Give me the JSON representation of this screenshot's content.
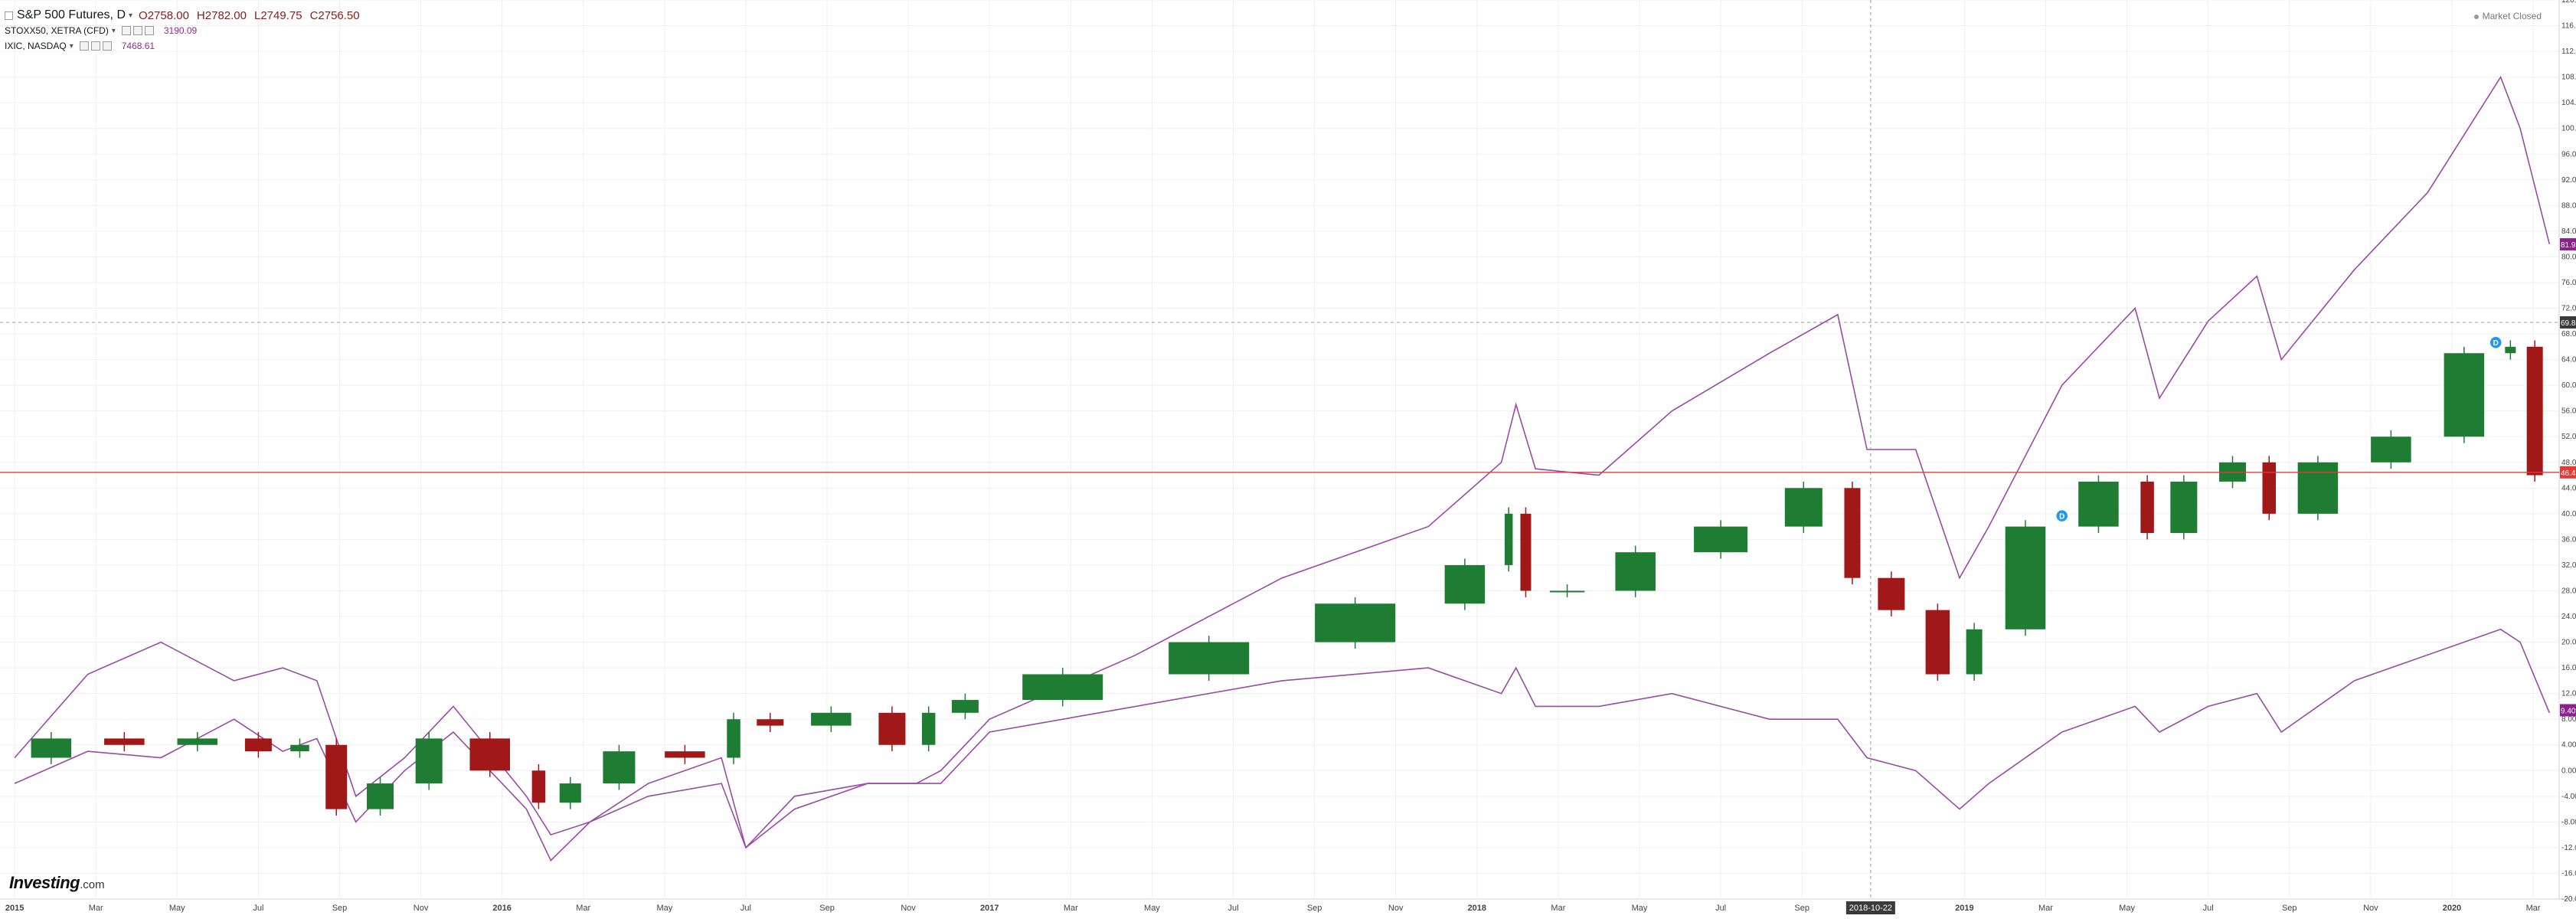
{
  "legend": {
    "main": {
      "name": "S&P 500 Futures, D",
      "open": "O2758.00",
      "high": "H2782.00",
      "low": "L2749.75",
      "close": "C2756.50"
    },
    "compare": [
      {
        "name": "STOXX50, XETRA (CFD)",
        "value": "3190.09"
      },
      {
        "name": "IXIC, NASDAQ",
        "value": "7468.61"
      }
    ]
  },
  "market_status": "Market Closed",
  "logo": {
    "main": "Investing",
    "suffix": ".com"
  },
  "colors": {
    "candle_up": "#1e7d32",
    "candle_down": "#a01818",
    "compare_line": "#9a4aa6",
    "badge_main": "#e53935",
    "badge_compare": "#8e1f8e",
    "crosshair_badge": "#3a3a3a",
    "grid": "#f0f0f0",
    "axis_text": "#444444",
    "event_marker": "#2196f3"
  },
  "chart_data": {
    "type": "line",
    "y_axis": {
      "unit": "%",
      "min": -20,
      "max": 120,
      "ticks": [
        "120.00%",
        "116.00%",
        "112.00%",
        "108.00%",
        "104.00%",
        "100.00%",
        "96.00%",
        "92.00%",
        "88.00%",
        "84.00%",
        "80.00%",
        "76.00%",
        "72.00%",
        "68.00%",
        "64.00%",
        "60.00%",
        "56.00%",
        "52.00%",
        "48.00%",
        "44.00%",
        "40.00%",
        "36.00%",
        "32.00%",
        "28.00%",
        "24.00%",
        "20.00%",
        "16.00%",
        "12.00%",
        "8.00%",
        "4.00%",
        "0.00%",
        "-4.00%",
        "-8.00%",
        "-12.00%",
        "-16.00%",
        "-20.00%"
      ]
    },
    "x_axis": {
      "start": "2015-01",
      "end": "2020-03",
      "ticks": [
        "2015",
        "Mar",
        "May",
        "Jul",
        "Sep",
        "Nov",
        "2016",
        "Mar",
        "May",
        "Jul",
        "Sep",
        "Nov",
        "2017",
        "Mar",
        "May",
        "Jul",
        "Sep",
        "Nov",
        "2018",
        "Mar",
        "May",
        "Jul",
        "Sep",
        "2018-10-22",
        "2019",
        "Mar",
        "May",
        "Jul",
        "Sep",
        "Nov",
        "2020",
        "Mar"
      ]
    },
    "grid": true,
    "crosshair": {
      "date": "2018-10-22",
      "value": "69.80"
    },
    "badges": [
      {
        "label": "81.95%",
        "value": 81.95,
        "series": "IXIC, NASDAQ"
      },
      {
        "label": "46.45%",
        "value": 46.45,
        "series": "S&P 500 Futures"
      },
      {
        "label": "9.40%",
        "value": 9.4,
        "series": "STOXX50, XETRA (CFD)"
      }
    ],
    "series": [
      {
        "name": "S&P 500 Futures",
        "style": "candles",
        "x": [
          2015.0,
          2015.15,
          2015.3,
          2015.45,
          2015.55,
          2015.62,
          2015.7,
          2015.8,
          2015.9,
          2016.05,
          2016.1,
          2016.18,
          2016.3,
          2016.45,
          2016.5,
          2016.6,
          2016.75,
          2016.85,
          2016.9,
          2017.0,
          2017.3,
          2017.6,
          2017.9,
          2018.05,
          2018.08,
          2018.12,
          2018.25,
          2018.4,
          2018.6,
          2018.74,
          2018.8,
          2018.9,
          2018.99,
          2019.05,
          2019.2,
          2019.35,
          2019.4,
          2019.5,
          2019.6,
          2019.65,
          2019.8,
          2019.95,
          2020.1,
          2020.14,
          2020.2
        ],
        "y": [
          2,
          5,
          4,
          5,
          3,
          4,
          -6,
          -2,
          5,
          0,
          -5,
          -2,
          3,
          2,
          8,
          7,
          9,
          4,
          9,
          11,
          15,
          20,
          26,
          32,
          40,
          28,
          28,
          34,
          38,
          44,
          30,
          25,
          15,
          22,
          38,
          45,
          37,
          45,
          48,
          40,
          48,
          52,
          65,
          66,
          46
        ]
      },
      {
        "name": "IXIC, NASDAQ",
        "style": "line",
        "x": [
          2015.0,
          2015.15,
          2015.3,
          2015.45,
          2015.55,
          2015.62,
          2015.7,
          2015.8,
          2015.9,
          2016.05,
          2016.1,
          2016.18,
          2016.3,
          2016.45,
          2016.5,
          2016.6,
          2016.75,
          2016.85,
          2016.9,
          2017.0,
          2017.3,
          2017.6,
          2017.9,
          2018.05,
          2018.08,
          2018.12,
          2018.25,
          2018.4,
          2018.6,
          2018.74,
          2018.8,
          2018.9,
          2018.99,
          2019.05,
          2019.2,
          2019.35,
          2019.4,
          2019.5,
          2019.6,
          2019.65,
          2019.8,
          2019.95,
          2020.1,
          2020.14,
          2020.2
        ],
        "y": [
          -2,
          3,
          2,
          8,
          3,
          5,
          -8,
          0,
          6,
          -6,
          -14,
          -8,
          -2,
          2,
          -12,
          -6,
          -2,
          -2,
          0,
          8,
          18,
          30,
          38,
          48,
          57,
          47,
          46,
          56,
          65,
          71,
          50,
          50,
          30,
          38,
          60,
          72,
          58,
          70,
          77,
          64,
          78,
          90,
          108,
          100,
          82
        ]
      },
      {
        "name": "STOXX50, XETRA (CFD)",
        "style": "line",
        "x": [
          2015.0,
          2015.15,
          2015.3,
          2015.45,
          2015.55,
          2015.62,
          2015.7,
          2015.8,
          2015.9,
          2016.05,
          2016.1,
          2016.18,
          2016.3,
          2016.45,
          2016.5,
          2016.6,
          2016.75,
          2016.85,
          2016.9,
          2017.0,
          2017.3,
          2017.6,
          2017.9,
          2018.05,
          2018.08,
          2018.12,
          2018.25,
          2018.4,
          2018.6,
          2018.74,
          2018.8,
          2018.9,
          2018.99,
          2019.05,
          2019.2,
          2019.35,
          2019.4,
          2019.5,
          2019.6,
          2019.65,
          2019.8,
          2019.95,
          2020.1,
          2020.14,
          2020.2
        ],
        "y": [
          2,
          15,
          20,
          14,
          16,
          14,
          -4,
          2,
          10,
          -4,
          -10,
          -8,
          -4,
          -2,
          -12,
          -4,
          -2,
          -2,
          -2,
          6,
          10,
          14,
          16,
          12,
          16,
          10,
          10,
          12,
          8,
          8,
          2,
          0,
          -6,
          -2,
          6,
          10,
          6,
          10,
          12,
          6,
          14,
          18,
          22,
          20,
          9
        ]
      }
    ],
    "events": [
      {
        "label": "D",
        "date": 2019.2,
        "series": "S&P 500 Futures"
      },
      {
        "label": "D",
        "date": 2020.09,
        "series": "S&P 500 Futures"
      }
    ]
  }
}
